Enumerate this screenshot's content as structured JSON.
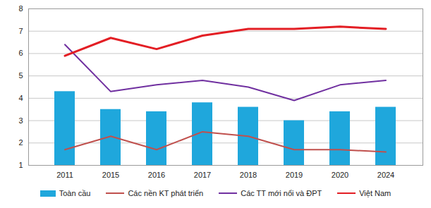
{
  "chart_data": {
    "type": "bar",
    "categories": [
      "2011",
      "2015",
      "2016",
      "2017",
      "2018",
      "2019",
      "2020",
      "2024"
    ],
    "series": [
      {
        "name": "Toàn cầu",
        "type": "bar",
        "color": "#1fa7dc",
        "values": [
          4.3,
          3.5,
          3.4,
          3.8,
          3.6,
          3.0,
          3.4,
          3.6
        ]
      },
      {
        "name": "Các nền KT phát triển",
        "type": "line",
        "color": "#c0504d",
        "values": [
          1.7,
          2.3,
          1.7,
          2.5,
          2.3,
          1.7,
          1.7,
          1.6
        ]
      },
      {
        "name": "Các TT mới nổi và ĐPT",
        "type": "line",
        "color": "#7030a0",
        "values": [
          6.4,
          4.3,
          4.6,
          4.8,
          4.5,
          3.9,
          4.6,
          4.8
        ]
      },
      {
        "name": "Việt Nam",
        "type": "line",
        "color": "#e31e24",
        "values": [
          5.9,
          6.7,
          6.2,
          6.8,
          7.1,
          7.1,
          7.2,
          7.1
        ]
      }
    ],
    "ylim": [
      1,
      8
    ],
    "yticks": [
      1,
      2,
      3,
      4,
      5,
      6,
      7,
      8
    ],
    "grid": true,
    "legend": "bottom"
  }
}
